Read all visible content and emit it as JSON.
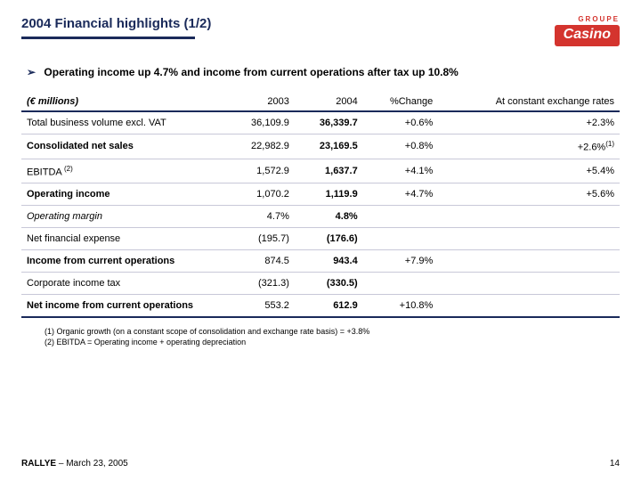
{
  "title": "2004 Financial highlights (1/2)",
  "logo": {
    "groupe": "GROUPE",
    "name": "Casino"
  },
  "bullet": "Operating income up 4.7% and income from current operations after tax up 10.8%",
  "table": {
    "header": {
      "c0": "(€ millions)",
      "c1": "2003",
      "c2": "2004",
      "c3": "%Change",
      "c4": "At constant exchange rates"
    },
    "rows": [
      {
        "label": "Total business volume excl. VAT",
        "v2003": "36,109.9",
        "v2004": "36,339.7",
        "chg": "+0.6%",
        "cc": "+2.3%",
        "bold": false,
        "italic": false
      },
      {
        "label": "Consolidated net sales",
        "v2003": "22,982.9",
        "v2004": "23,169.5",
        "chg": "+0.8%",
        "cc": "+2.6%",
        "ccnote": "(1)",
        "bold": true,
        "italic": false
      },
      {
        "label": "EBITDA",
        "labelnote": "(2)",
        "v2003": "1,572.9",
        "v2004": "1,637.7",
        "chg": "+4.1%",
        "cc": "+5.4%",
        "bold": false,
        "italic": false
      },
      {
        "label": "Operating income",
        "v2003": "1,070.2",
        "v2004": "1,119.9",
        "chg": "+4.7%",
        "cc": "+5.6%",
        "bold": true,
        "italic": false
      },
      {
        "label": "Operating margin",
        "v2003": "4.7%",
        "v2004": "4.8%",
        "chg": "",
        "cc": "",
        "bold": false,
        "italic": true
      },
      {
        "label": "Net financial expense",
        "v2003": "(195.7)",
        "v2004": "(176.6)",
        "chg": "",
        "cc": "",
        "bold": false,
        "italic": false
      },
      {
        "label": "Income from current operations",
        "v2003": "874.5",
        "v2004": "943.4",
        "chg": "+7.9%",
        "cc": "",
        "bold": true,
        "italic": false
      },
      {
        "label": "Corporate income tax",
        "v2003": "(321.3)",
        "v2004": "(330.5)",
        "chg": "",
        "cc": "",
        "bold": false,
        "italic": false
      },
      {
        "label": "Net income from current operations",
        "v2003": "553.2",
        "v2004": "612.9",
        "chg": "+10.8%",
        "cc": "",
        "bold": true,
        "italic": false
      }
    ]
  },
  "footnotes": {
    "n1": "(1) Organic growth (on a constant scope of consolidation and exchange rate basis) = +3.8%",
    "n2": "(2) EBITDA = Operating income + operating depreciation"
  },
  "footer": {
    "company": "RALLYE",
    "date": " – March 23, 2005",
    "page": "14"
  },
  "colors": {
    "navy": "#1a2a5a",
    "red": "#d4342e",
    "rowline": "#c8c8d8",
    "bg": "#ffffff"
  }
}
